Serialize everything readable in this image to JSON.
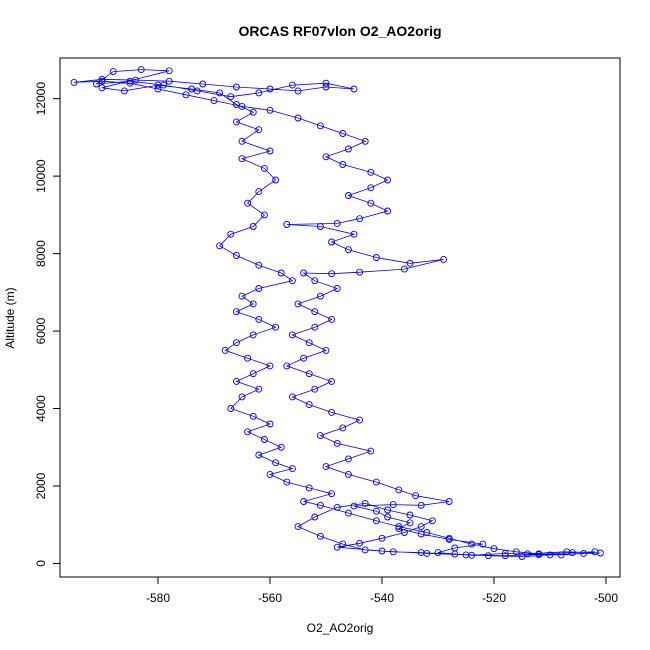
{
  "chart_data": {
    "type": "scatter",
    "title": "ORCAS RF07vlon O2_AO2orig",
    "xlabel": "O2_AO2orig",
    "ylabel": "Altitude (m)",
    "xlim": [
      -597.5,
      -497.5
    ],
    "ylim": [
      -350,
      13050
    ],
    "x_ticks": [
      -580,
      -560,
      -540,
      -520,
      -500
    ],
    "y_ticks": [
      0,
      2000,
      4000,
      6000,
      8000,
      10000,
      12000
    ],
    "grid": false,
    "legend": "none",
    "series_style": "points connected by lines",
    "color": "#0000ff",
    "series": [
      {
        "points": [
          [
            -514,
            250
          ],
          [
            -507,
            300
          ],
          [
            -501,
            270
          ],
          [
            -510,
            220
          ],
          [
            -518,
            260
          ],
          [
            -524,
            210
          ],
          [
            -530,
            280
          ],
          [
            -527,
            400
          ],
          [
            -522,
            500
          ],
          [
            -528,
            620
          ],
          [
            -533,
            760
          ],
          [
            -537,
            900
          ],
          [
            -535,
            1050
          ],
          [
            -539,
            1200
          ],
          [
            -541,
            1350
          ],
          [
            -545,
            1480
          ],
          [
            -538,
            1520
          ],
          [
            -533,
            1500
          ],
          [
            -528,
            1600
          ],
          [
            -534,
            1750
          ],
          [
            -537,
            1900
          ],
          [
            -541,
            2100
          ],
          [
            -546,
            2300
          ],
          [
            -550,
            2500
          ],
          [
            -546,
            2700
          ],
          [
            -542,
            2900
          ],
          [
            -548,
            3100
          ],
          [
            -551,
            3300
          ],
          [
            -547,
            3500
          ],
          [
            -544,
            3700
          ],
          [
            -549,
            3900
          ],
          [
            -553,
            4100
          ],
          [
            -556,
            4300
          ],
          [
            -552,
            4500
          ],
          [
            -549,
            4700
          ],
          [
            -553,
            4900
          ],
          [
            -557,
            5100
          ],
          [
            -554,
            5300
          ],
          [
            -550,
            5500
          ],
          [
            -553,
            5700
          ],
          [
            -556,
            5900
          ],
          [
            -552,
            6100
          ],
          [
            -549,
            6300
          ],
          [
            -552,
            6500
          ],
          [
            -555,
            6700
          ],
          [
            -551,
            6900
          ],
          [
            -548,
            7100
          ],
          [
            -552,
            7300
          ],
          [
            -554,
            7500
          ],
          [
            -549,
            7480
          ],
          [
            -544,
            7520
          ],
          [
            -536,
            7600
          ],
          [
            -529,
            7850
          ],
          [
            -535,
            7750
          ],
          [
            -541,
            7900
          ],
          [
            -546,
            8100
          ],
          [
            -549,
            8300
          ],
          [
            -545,
            8500
          ],
          [
            -551,
            8700
          ],
          [
            -557,
            8750
          ],
          [
            -548,
            8780
          ],
          [
            -544,
            8900
          ],
          [
            -539,
            9100
          ],
          [
            -542,
            9300
          ],
          [
            -546,
            9500
          ],
          [
            -542,
            9700
          ],
          [
            -539,
            9900
          ],
          [
            -542,
            10100
          ],
          [
            -547,
            10300
          ],
          [
            -550,
            10500
          ],
          [
            -546,
            10700
          ],
          [
            -543,
            10900
          ],
          [
            -547,
            11100
          ],
          [
            -551,
            11300
          ],
          [
            -555,
            11500
          ],
          [
            -560,
            11700
          ],
          [
            -565,
            11800
          ],
          [
            -570,
            11950
          ],
          [
            -575,
            12100
          ],
          [
            -580,
            12250
          ],
          [
            -585,
            12400
          ],
          [
            -590,
            12450
          ],
          [
            -595,
            12420
          ],
          [
            -590,
            12500
          ],
          [
            -584,
            12480
          ],
          [
            -578,
            12450
          ],
          [
            -572,
            12380
          ],
          [
            -566,
            12300
          ],
          [
            -560,
            12250
          ],
          [
            -555,
            12200
          ],
          [
            -550,
            12300
          ],
          [
            -545,
            12250
          ],
          [
            -550,
            12400
          ],
          [
            -556,
            12350
          ],
          [
            -562,
            12150
          ],
          [
            -567,
            12050
          ],
          [
            -573,
            12200
          ],
          [
            -579,
            12350
          ],
          [
            -585,
            12450
          ],
          [
            -591,
            12380
          ],
          [
            -588,
            12700
          ],
          [
            -583,
            12750
          ],
          [
            -578,
            12720
          ],
          [
            -590,
            12280
          ],
          [
            -586,
            12200
          ],
          [
            -580,
            12350
          ],
          [
            -574,
            12250
          ],
          [
            -569,
            12150
          ],
          [
            -566,
            11850
          ],
          [
            -563,
            11650
          ],
          [
            -566,
            11400
          ],
          [
            -562,
            11200
          ],
          [
            -565,
            10900
          ],
          [
            -560,
            10650
          ],
          [
            -565,
            10450
          ],
          [
            -561,
            10200
          ],
          [
            -559,
            9900
          ],
          [
            -562,
            9600
          ],
          [
            -564,
            9300
          ],
          [
            -561,
            9000
          ],
          [
            -563,
            8700
          ],
          [
            -567,
            8500
          ],
          [
            -569,
            8200
          ],
          [
            -566,
            7950
          ],
          [
            -562,
            7700
          ],
          [
            -558,
            7500
          ],
          [
            -556,
            7300
          ],
          [
            -562,
            7100
          ],
          [
            -565,
            6900
          ],
          [
            -563,
            6700
          ],
          [
            -566,
            6500
          ],
          [
            -562,
            6300
          ],
          [
            -559,
            6100
          ],
          [
            -563,
            5900
          ],
          [
            -566,
            5700
          ],
          [
            -568,
            5500
          ],
          [
            -564,
            5300
          ],
          [
            -560,
            5100
          ],
          [
            -563,
            4900
          ],
          [
            -566,
            4700
          ],
          [
            -562,
            4500
          ],
          [
            -565,
            4300
          ],
          [
            -567,
            4000
          ],
          [
            -563,
            3800
          ],
          [
            -560,
            3600
          ],
          [
            -564,
            3400
          ],
          [
            -561,
            3200
          ],
          [
            -558,
            3000
          ],
          [
            -562,
            2800
          ],
          [
            -559,
            2600
          ],
          [
            -556,
            2450
          ],
          [
            -560,
            2300
          ],
          [
            -557,
            2100
          ],
          [
            -553,
            1950
          ],
          [
            -549,
            1800
          ],
          [
            -554,
            1600
          ],
          [
            -551,
            1500
          ],
          [
            -546,
            1300
          ],
          [
            -541,
            1100
          ],
          [
            -537,
            950
          ],
          [
            -532,
            800
          ],
          [
            -528,
            650
          ],
          [
            -524,
            500
          ],
          [
            -520,
            380
          ],
          [
            -516,
            300
          ],
          [
            -512,
            250
          ],
          [
            -508,
            220
          ],
          [
            -504,
            260
          ],
          [
            -515,
            180
          ],
          [
            -521,
            200
          ],
          [
            -527,
            240
          ],
          [
            -533,
            280
          ],
          [
            -538,
            300
          ],
          [
            -543,
            350
          ],
          [
            -547,
            500
          ],
          [
            -551,
            700
          ],
          [
            -555,
            950
          ],
          [
            -552,
            1200
          ],
          [
            -548,
            1450
          ],
          [
            -543,
            1550
          ],
          [
            -539,
            1380
          ],
          [
            -535,
            1250
          ],
          [
            -531,
            1100
          ],
          [
            -533,
            950
          ],
          [
            -536,
            800
          ],
          [
            -540,
            650
          ],
          [
            -544,
            520
          ],
          [
            -548,
            420
          ],
          [
            -540,
            320
          ],
          [
            -532,
            260
          ],
          [
            -525,
            220
          ],
          [
            -518,
            200
          ],
          [
            -512,
            230
          ],
          [
            -506,
            280
          ],
          [
            -502,
            300
          ]
        ]
      }
    ]
  }
}
